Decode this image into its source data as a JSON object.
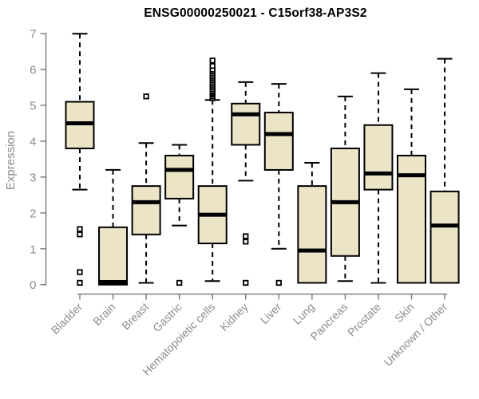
{
  "chart_data": {
    "type": "boxplot",
    "title": "ENSG00000250021 - C15orf38-AP3S2",
    "ylabel": "Expression",
    "xlabel": "",
    "ylim": [
      0,
      7
    ],
    "yticks": [
      0,
      1,
      2,
      3,
      4,
      5,
      6,
      7
    ],
    "grid": false,
    "legend": "none",
    "categories": [
      "Bladder",
      "Brain",
      "Breast",
      "Gastric",
      "Hematopoietic cells",
      "Kidney",
      "Liver",
      "Lung",
      "Pancreas",
      "Prostate",
      "Skin",
      "Unknown / Other"
    ],
    "series": [
      {
        "category": "Bladder",
        "whisker_low": 2.65,
        "q1": 3.8,
        "median": 4.5,
        "q3": 5.1,
        "whisker_high": 7.0,
        "outliers": [
          1.55,
          1.4,
          0.35,
          0.05
        ]
      },
      {
        "category": "Brain",
        "whisker_low": 0.0,
        "q1": 0.0,
        "median": 0.07,
        "q3": 1.6,
        "whisker_high": 3.2,
        "outliers": []
      },
      {
        "category": "Breast",
        "whisker_low": 0.05,
        "q1": 1.4,
        "median": 2.3,
        "q3": 2.75,
        "whisker_high": 3.95,
        "outliers": [
          5.25
        ]
      },
      {
        "category": "Gastric",
        "whisker_low": 1.65,
        "q1": 2.4,
        "median": 3.2,
        "q3": 3.6,
        "whisker_high": 3.9,
        "outliers": [
          0.05
        ]
      },
      {
        "category": "Hematopoietic cells",
        "whisker_low": 0.1,
        "q1": 1.15,
        "median": 1.95,
        "q3": 2.75,
        "whisker_high": 5.15,
        "outliers": [
          5.2,
          5.25,
          5.3,
          5.33,
          5.37,
          5.4,
          5.45,
          5.5,
          5.55,
          5.6,
          5.65,
          5.7,
          5.75,
          5.8,
          5.85,
          5.9,
          5.95,
          6.0,
          6.1,
          6.25
        ]
      },
      {
        "category": "Kidney",
        "whisker_low": 2.9,
        "q1": 3.9,
        "median": 4.75,
        "q3": 5.05,
        "whisker_high": 5.65,
        "outliers": [
          1.35,
          1.2,
          0.05
        ]
      },
      {
        "category": "Liver",
        "whisker_low": 1.0,
        "q1": 3.2,
        "median": 4.2,
        "q3": 4.8,
        "whisker_high": 5.6,
        "outliers": [
          0.05
        ]
      },
      {
        "category": "Lung",
        "whisker_low": 0.05,
        "q1": 0.05,
        "median": 0.95,
        "q3": 2.75,
        "whisker_high": 3.4,
        "outliers": []
      },
      {
        "category": "Pancreas",
        "whisker_low": 0.1,
        "q1": 0.8,
        "median": 2.3,
        "q3": 3.8,
        "whisker_high": 5.25,
        "outliers": []
      },
      {
        "category": "Prostate",
        "whisker_low": 0.05,
        "q1": 2.65,
        "median": 3.1,
        "q3": 4.45,
        "whisker_high": 5.9,
        "outliers": []
      },
      {
        "category": "Skin",
        "whisker_low": 0.05,
        "q1": 0.05,
        "median": 3.05,
        "q3": 3.6,
        "whisker_high": 5.45,
        "outliers": []
      },
      {
        "category": "Unknown / Other",
        "whisker_low": 0.05,
        "q1": 0.05,
        "median": 1.65,
        "q3": 2.6,
        "whisker_high": 6.3,
        "outliers": []
      }
    ],
    "colors": {
      "box_fill": "#ece4c6",
      "box_border": "#000000",
      "median_line": "#000000",
      "whisker": "#000000",
      "outlier_fill": "#ffffff",
      "axis_line": "#808080",
      "axis_text": "#8c8c8c",
      "title_text": "#000000",
      "background": "#ffffff"
    }
  }
}
